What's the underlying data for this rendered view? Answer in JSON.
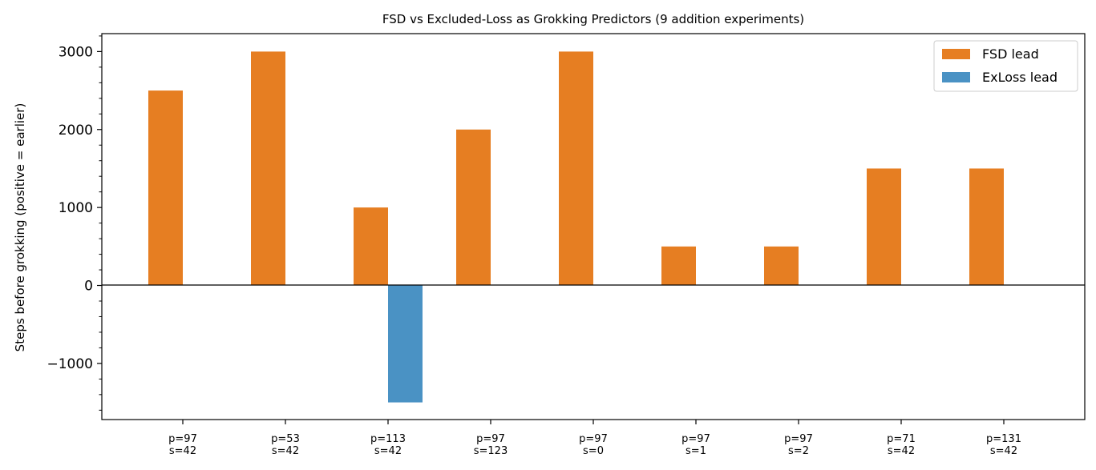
{
  "chart_data": {
    "type": "bar",
    "title": "FSD vs Excluded-Loss as Grokking Predictors (9 addition experiments)",
    "xlabel": "",
    "ylabel": "Steps before grokking (positive = earlier)",
    "categories": [
      [
        "p=97",
        "s=42"
      ],
      [
        "p=53",
        "s=42"
      ],
      [
        "p=113",
        "s=42"
      ],
      [
        "p=97",
        "s=123"
      ],
      [
        "p=97",
        "s=0"
      ],
      [
        "p=97",
        "s=1"
      ],
      [
        "p=97",
        "s=2"
      ],
      [
        "p=71",
        "s=42"
      ],
      [
        "p=131",
        "s=42"
      ]
    ],
    "series": [
      {
        "name": "FSD lead",
        "color": "#e67e22",
        "values": [
          2500,
          3000,
          1000,
          2000,
          3000,
          500,
          500,
          1500,
          1500
        ]
      },
      {
        "name": "ExLoss lead",
        "color": "#4a92c4",
        "values": [
          0,
          0,
          -1500,
          0,
          0,
          0,
          0,
          0,
          0
        ]
      }
    ],
    "ylim": [
      -1720,
      3230
    ],
    "yticks": [
      -1000,
      0,
      1000,
      2000,
      3000
    ],
    "yticks_minor_step": 200,
    "zero_line": true,
    "grid": false,
    "legend": "top-right"
  }
}
